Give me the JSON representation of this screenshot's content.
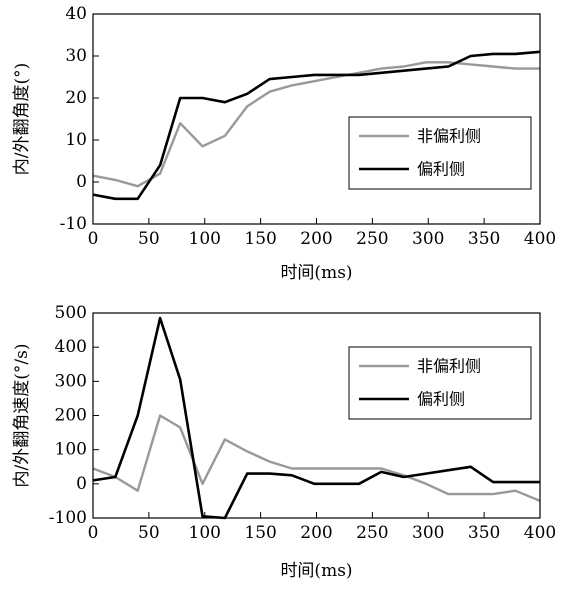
{
  "chart_data": [
    {
      "type": "line",
      "xlabel": "时间(ms)",
      "ylabel": "内/外翻角度(°)",
      "xlim": [
        0,
        400
      ],
      "ylim": [
        -10,
        40
      ],
      "xticks": [
        0,
        50,
        100,
        150,
        200,
        250,
        300,
        350,
        400
      ],
      "yticks": [
        -10,
        0,
        10,
        20,
        30,
        40
      ],
      "legend_position": "center-right",
      "series": [
        {
          "name": "非偏利侧",
          "color": "#999999",
          "x": [
            0,
            20,
            40,
            60,
            78,
            98,
            118,
            138,
            158,
            178,
            198,
            218,
            238,
            258,
            278,
            298,
            318,
            338,
            358,
            378,
            400
          ],
          "y": [
            1.5,
            0.5,
            -1,
            2,
            14,
            8.5,
            11,
            18,
            21.5,
            23,
            24,
            25,
            26,
            27,
            27.5,
            28.5,
            28.5,
            28,
            27.5,
            27,
            27
          ]
        },
        {
          "name": "偏利侧",
          "color": "#000000",
          "x": [
            0,
            20,
            40,
            60,
            78,
            98,
            118,
            138,
            158,
            178,
            198,
            218,
            238,
            258,
            278,
            298,
            318,
            338,
            358,
            378,
            400
          ],
          "y": [
            -3,
            -4,
            -4,
            4,
            20,
            20,
            19,
            21,
            24.5,
            25,
            25.5,
            25.5,
            25.5,
            26,
            26.5,
            27,
            27.5,
            30,
            30.5,
            30.5,
            31
          ]
        }
      ]
    },
    {
      "type": "line",
      "xlabel": "时间(ms)",
      "ylabel": "内/外翻角速度(°/s)",
      "xlim": [
        0,
        400
      ],
      "ylim": [
        -100,
        500
      ],
      "xticks": [
        0,
        50,
        100,
        150,
        200,
        250,
        300,
        350,
        400
      ],
      "yticks": [
        -100,
        0,
        100,
        200,
        300,
        400,
        500
      ],
      "legend_position": "center-right",
      "series": [
        {
          "name": "非偏利侧",
          "color": "#999999",
          "x": [
            0,
            20,
            40,
            60,
            78,
            98,
            118,
            138,
            158,
            178,
            198,
            218,
            238,
            258,
            278,
            298,
            318,
            338,
            358,
            378,
            400
          ],
          "y": [
            45,
            20,
            -20,
            200,
            165,
            0,
            130,
            95,
            65,
            45,
            45,
            45,
            45,
            45,
            25,
            0,
            -30,
            -30,
            -30,
            -20,
            -50
          ]
        },
        {
          "name": "偏利侧",
          "color": "#000000",
          "x": [
            0,
            20,
            40,
            60,
            78,
            98,
            118,
            138,
            158,
            178,
            198,
            218,
            238,
            258,
            278,
            298,
            318,
            338,
            358,
            378,
            400
          ],
          "y": [
            10,
            20,
            200,
            485,
            305,
            -95,
            -100,
            30,
            30,
            25,
            0,
            0,
            0,
            35,
            20,
            30,
            40,
            50,
            5,
            5,
            5
          ]
        }
      ]
    }
  ]
}
